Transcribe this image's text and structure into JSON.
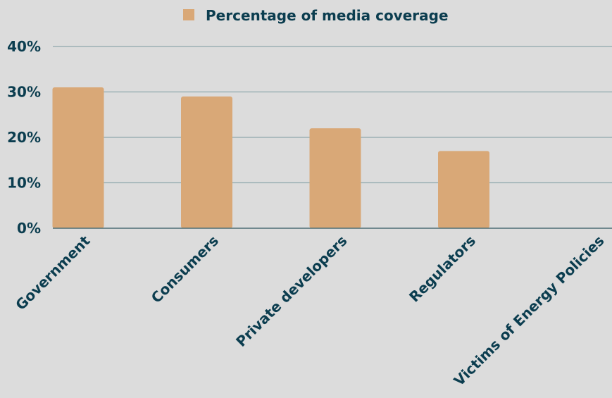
{
  "chart_data": {
    "type": "bar",
    "categories": [
      "Government",
      "Consumers",
      "Private developers",
      "Regulators",
      "Victims of Energy Policies"
    ],
    "series": [
      {
        "name": "Percentage of media coverage",
        "values": [
          31,
          29,
          22,
          17,
          0
        ]
      }
    ],
    "y_ticks": [
      "0%",
      "10%",
      "20%",
      "30%",
      "40%"
    ],
    "y_tick_values": [
      0,
      10,
      20,
      30,
      40
    ],
    "ylim": [
      0,
      40
    ],
    "grid": true,
    "legend_position": "top-center",
    "colors": {
      "bar": "#d9a877",
      "text": "#0b3d4f",
      "grid": "#8fa7ad",
      "axis": "#4d6d75",
      "background": "#dcdcdc"
    }
  }
}
